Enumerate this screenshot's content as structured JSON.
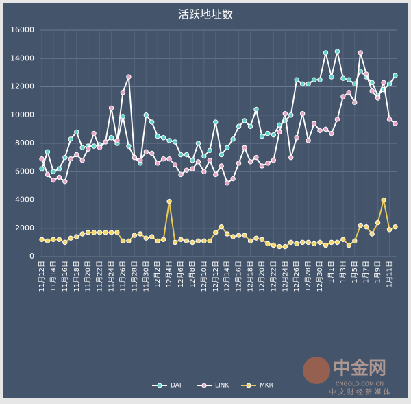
{
  "chart_data": {
    "type": "line",
    "title": "活跃地址数",
    "categories": [
      "11月12日",
      null,
      "11月14日",
      null,
      "11月16日",
      null,
      "11月18日",
      null,
      "11月20日",
      null,
      "11月22日",
      null,
      "11月24日",
      null,
      "11月26日",
      null,
      "11月28日",
      null,
      "11月30日",
      null,
      "12月2日",
      null,
      "12月4日",
      null,
      "12月6日",
      null,
      "12月8日",
      null,
      "12月10日",
      null,
      "12月12日",
      null,
      "12月14日",
      null,
      "12月16日",
      null,
      "12月18日",
      null,
      "12月20日",
      null,
      "12月22日",
      null,
      "12月24日",
      null,
      "12月26日",
      null,
      "12月28日",
      null,
      "12月30日",
      null,
      "1月1日",
      null,
      "1月3日",
      null,
      "1月5日",
      null,
      "1月7日",
      null,
      "1月9日",
      null,
      "1月11日",
      null
    ],
    "series": [
      {
        "name": "DAI",
        "color": "#5fd3cc",
        "line_color": "#ffffff",
        "values": [
          6200,
          7400,
          6000,
          6200,
          7000,
          8300,
          8800,
          7700,
          7800,
          7800,
          7900,
          8100,
          8400,
          8000,
          9900,
          7800,
          7000,
          6600,
          10000,
          9500,
          8500,
          8400,
          8200,
          8100,
          7200,
          7200,
          6800,
          8000,
          7100,
          7500,
          9500,
          7200,
          7700,
          8300,
          9200,
          9600,
          9200,
          10400,
          8500,
          8700,
          8600,
          9300,
          9600,
          10000,
          12500,
          12200,
          12200,
          12500,
          12500,
          14400,
          12700,
          14500,
          12600,
          12500,
          12200,
          13100,
          12700,
          12300,
          11400,
          11800,
          12200,
          12800
        ]
      },
      {
        "name": "LINK",
        "color": "#e8a6c6",
        "line_color": "#ffffff",
        "values": [
          6900,
          5800,
          5400,
          5600,
          5300,
          6900,
          7200,
          6800,
          7600,
          8700,
          7700,
          8100,
          10500,
          8200,
          11600,
          12700,
          7000,
          6800,
          7400,
          7300,
          6600,
          6900,
          6900,
          6500,
          5800,
          6100,
          6200,
          6700,
          6000,
          6800,
          5800,
          6400,
          5200,
          5500,
          6600,
          7700,
          6700,
          7000,
          6400,
          6600,
          6800,
          8800,
          10100,
          7000,
          8400,
          10100,
          8200,
          9400,
          8900,
          9000,
          8700,
          9700,
          11300,
          11600,
          10900,
          14400,
          12900,
          11700,
          11200,
          12300,
          9700,
          9400
        ]
      },
      {
        "name": "MKR",
        "color": "#f2d66b",
        "line_color": "#e9c85a",
        "values": [
          1200,
          1100,
          1200,
          1200,
          1000,
          1300,
          1400,
          1600,
          1700,
          1700,
          1700,
          1700,
          1700,
          1700,
          1100,
          1100,
          1500,
          1600,
          1300,
          1400,
          1100,
          1200,
          3900,
          1000,
          1200,
          1100,
          1000,
          1100,
          1100,
          1100,
          1700,
          2100,
          1600,
          1400,
          1500,
          1500,
          1100,
          1300,
          1200,
          900,
          800,
          700,
          700,
          1000,
          900,
          1000,
          1000,
          900,
          1000,
          800,
          1000,
          1000,
          1200,
          800,
          1100,
          2200,
          2100,
          1600,
          2400,
          4000,
          1900,
          2100
        ]
      }
    ],
    "ylim": [
      0,
      16000
    ],
    "yticks": [
      0,
      2000,
      4000,
      6000,
      8000,
      10000,
      12000,
      14000,
      16000
    ],
    "grid": true,
    "legend": "bottom"
  },
  "watermark": {
    "brand": "中金网",
    "site": "CNGOLD.COM.CN",
    "slogan": "中 文 财 经 新 媒 体"
  }
}
